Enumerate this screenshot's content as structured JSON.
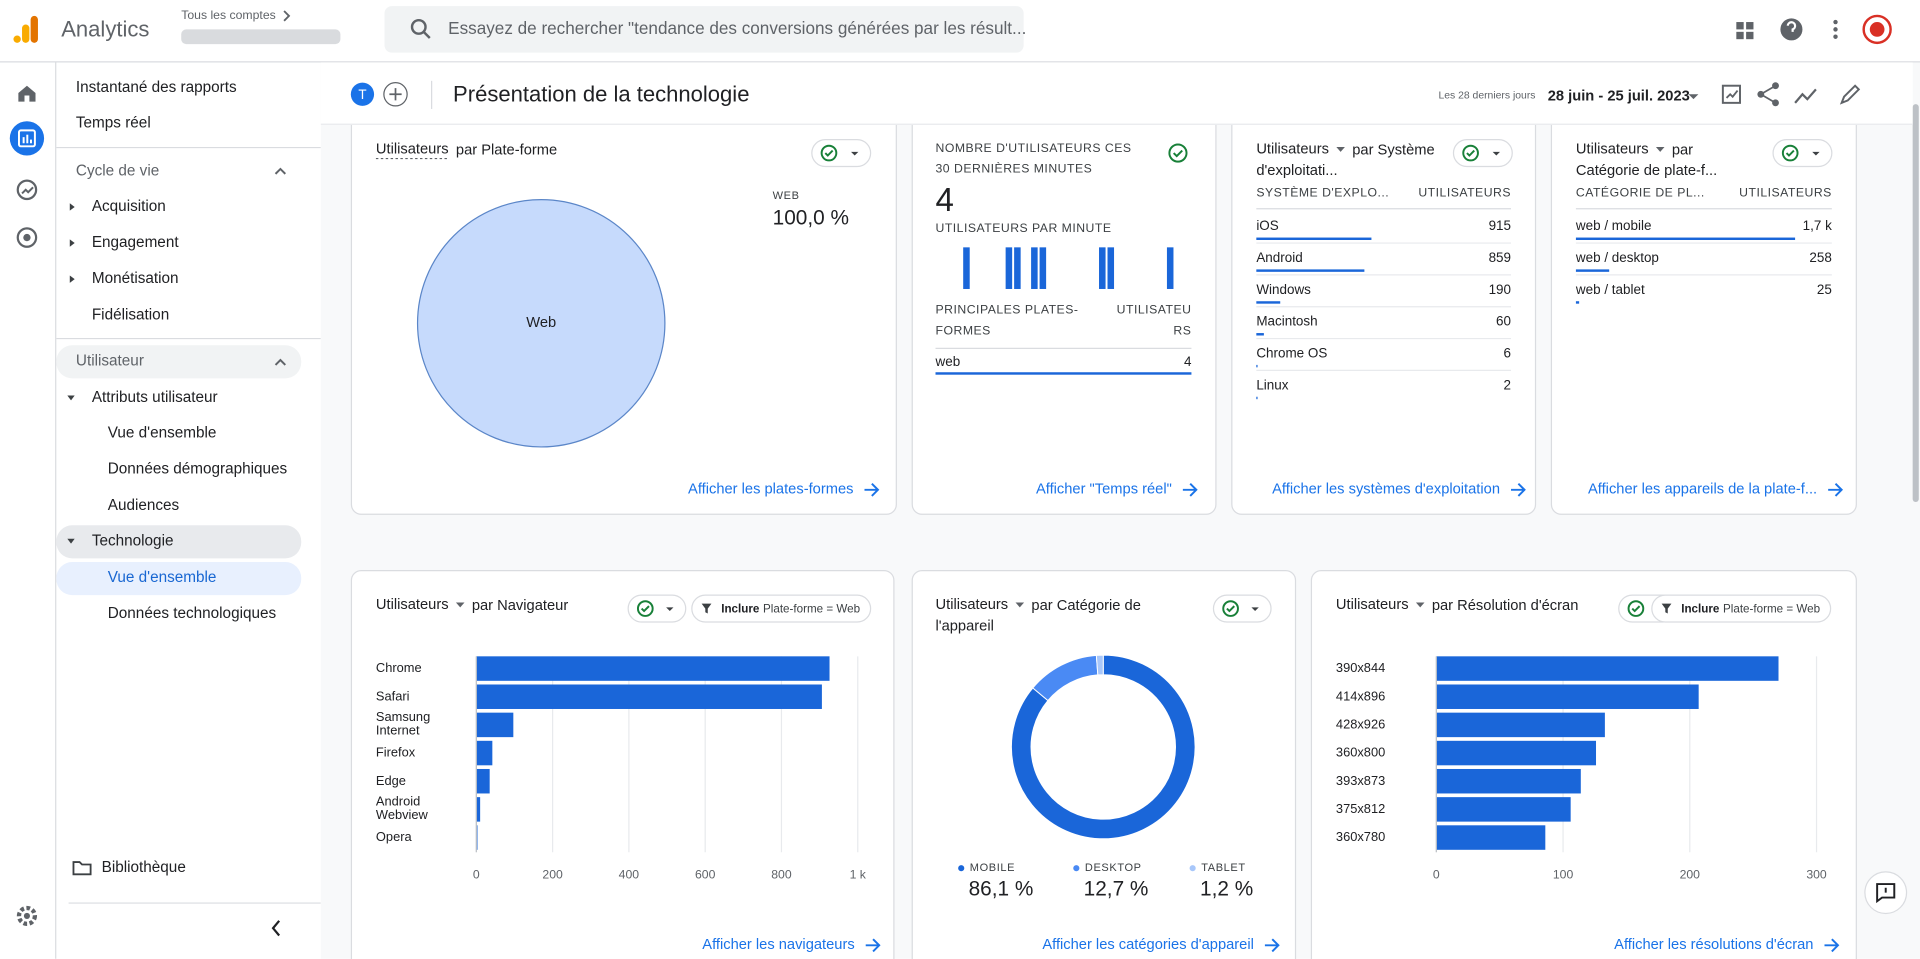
{
  "header": {
    "app": "Analytics",
    "account_label": "Tous les comptes",
    "search_placeholder": "Essayez de rechercher \"tendance des conversions générées par les résult..."
  },
  "sidebar": {
    "top": [
      "Instantané des rapports",
      "Temps réel"
    ],
    "lifecycle": {
      "title": "Cycle de vie",
      "items": [
        "Acquisition",
        "Engagement",
        "Monétisation",
        "Fidélisation"
      ]
    },
    "user": {
      "title": "Utilisateur",
      "groups": [
        {
          "title": "Attributs utilisateur",
          "items": [
            "Vue d'ensemble",
            "Données démographiques",
            "Audiences"
          ]
        },
        {
          "title": "Technologie",
          "items": [
            "Vue d'ensemble",
            "Données technologiques"
          ]
        }
      ]
    },
    "library": "Bibliothèque"
  },
  "toolbar": {
    "avatar": "T",
    "title": "Présentation de la technologie",
    "date_label": "Les 28 derniers jours",
    "date_range": "28 juin - 25 juil. 2023"
  },
  "cards": {
    "platforms": {
      "type": "pie",
      "metric": "Utilisateurs",
      "title": "par Plate-forme",
      "categories": [
        "Web"
      ],
      "legend": [
        "WEB"
      ],
      "values": [
        100
      ],
      "value_labels": [
        "100,0 %"
      ],
      "color": "#c6dafc",
      "link": "Afficher les plates-formes"
    },
    "realtime": {
      "type": "bar",
      "heading": "NOMBRE D'UTILISATEURS CES 30 DERNIÈRES MINUTES",
      "count": 4,
      "per_minute": "UTILISATEURS PAR MINUTE",
      "values": [
        0,
        0,
        0,
        1,
        0,
        0,
        0,
        0,
        1,
        1,
        0,
        1,
        1,
        0,
        0,
        0,
        0,
        0,
        0,
        1,
        1,
        0,
        0,
        0,
        0,
        0,
        0,
        1,
        0,
        0
      ],
      "color": "#1a66d9",
      "table": {
        "headers": [
          "PRINCIPALES PLATES-FORMES",
          "UTILISATEURS"
        ],
        "rows": [
          {
            "label": "web",
            "value": 4
          }
        ]
      },
      "link": "Afficher \"Temps réel\""
    },
    "os": {
      "type": "table",
      "metric": "Utilisateurs",
      "title": "par Système d'exploitati...",
      "headers": [
        "SYSTÈME D'EXPLO...",
        "UTILISATEURS"
      ],
      "rows": [
        {
          "label": "iOS",
          "value": 915
        },
        {
          "label": "Android",
          "value": 859
        },
        {
          "label": "Windows",
          "value": 190
        },
        {
          "label": "Macintosh",
          "value": 60
        },
        {
          "label": "Chrome OS",
          "value": 6
        },
        {
          "label": "Linux",
          "value": 2
        }
      ],
      "color": "#1a66d9",
      "link": "Afficher les systèmes d'exploitation"
    },
    "platform_devices": {
      "type": "table",
      "metric": "Utilisateurs",
      "title": "par Catégorie de plate-f...",
      "headers": [
        "CATÉGORIE DE PL...",
        "UTILISATEURS"
      ],
      "rows": [
        {
          "label": "web / mobile",
          "value": 1700,
          "value_label": "1,7 k"
        },
        {
          "label": "web / desktop",
          "value": 258
        },
        {
          "label": "web / tablet",
          "value": 25
        }
      ],
      "color": "#1a66d9",
      "link": "Afficher les appareils de la plate-f..."
    },
    "browsers": {
      "type": "hbar",
      "metric": "Utilisateurs",
      "title": "par Navigateur",
      "filter": {
        "label": "Inclure",
        "value": "Plate-forme = Web"
      },
      "categories": [
        "Chrome",
        "Safari",
        "Samsung Internet",
        "Firefox",
        "Edge",
        "Android Webview",
        "Opera"
      ],
      "values": [
        926,
        906,
        97,
        42,
        35,
        10,
        3
      ],
      "color": "#1a66d9",
      "xlim": [
        0,
        1000
      ],
      "xticks": [
        0,
        200,
        400,
        600,
        800,
        {
          "value": 1000,
          "label": "1 k"
        }
      ],
      "grid": true,
      "link": "Afficher les navigateurs"
    },
    "devices": {
      "type": "donut",
      "metric": "Utilisateurs",
      "title": "par Catégorie de l'appareil",
      "series": [
        {
          "name": "MOBILE",
          "color": "#1a66d9",
          "value": 86.1,
          "value_label": "86,1 %"
        },
        {
          "name": "DESKTOP",
          "color": "#4a8af4",
          "value": 12.7,
          "value_label": "12,7 %"
        },
        {
          "name": "TABLET",
          "color": "#a8c7fa",
          "value": 1.2,
          "value_label": "1,2 %"
        }
      ],
      "link": "Afficher les catégories d'appareil"
    },
    "resolutions": {
      "type": "hbar",
      "metric": "Utilisateurs",
      "title": "par Résolution d'écran",
      "filter": {
        "label": "Inclure",
        "value": "Plate-forme = Web"
      },
      "categories": [
        "390x844",
        "414x896",
        "428x926",
        "360x800",
        "393x873",
        "375x812",
        "360x780"
      ],
      "values": [
        270,
        207,
        133,
        126,
        114,
        106,
        86
      ],
      "color": "#1a66d9",
      "xlim": [
        0,
        300
      ],
      "xticks": [
        0,
        100,
        200,
        300
      ],
      "grid": true,
      "link": "Afficher les résolutions d'écran"
    }
  }
}
